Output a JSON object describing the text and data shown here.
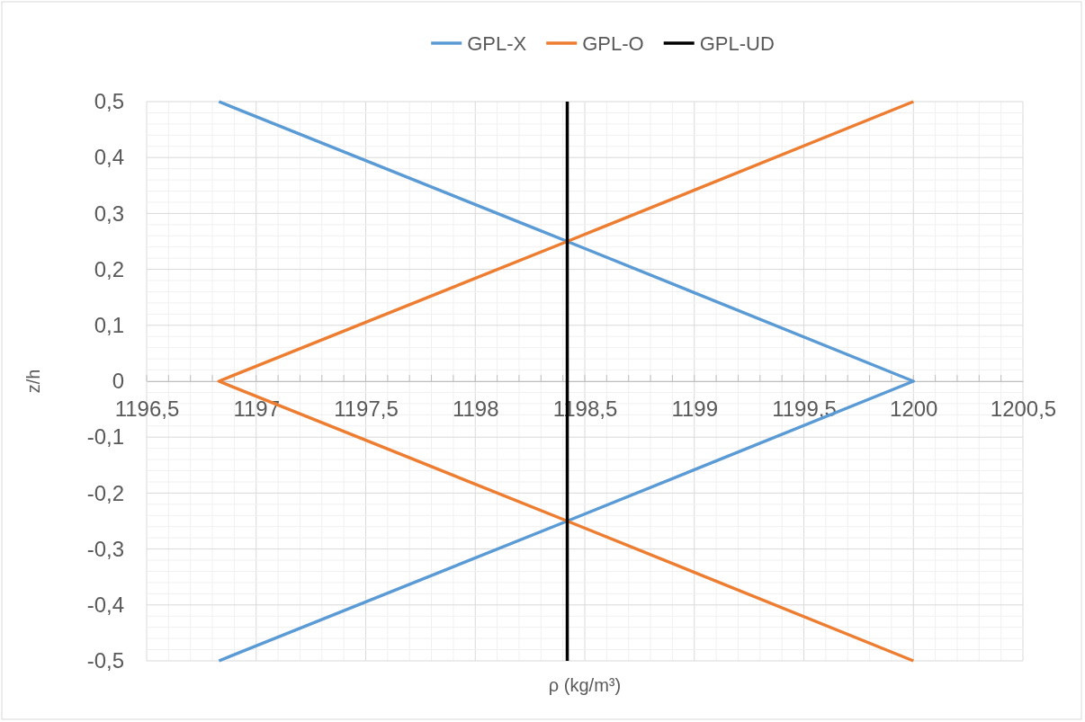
{
  "chart_data": {
    "type": "line",
    "xlabel": "ρ (kg/m³)",
    "ylabel": "z/h",
    "legend": "top",
    "grid": true,
    "line_style": "solid",
    "marker": "none",
    "xlim": [
      1196.5,
      1200.5
    ],
    "xticks": [
      {
        "value": 1196.5,
        "label": "1196,5"
      },
      1197,
      {
        "value": 1197.5,
        "label": "1197,5"
      },
      1198,
      {
        "value": 1198.5,
        "label": "1198,5"
      },
      1199,
      {
        "value": 1199.5,
        "label": "1199,5"
      },
      1200,
      {
        "value": 1200.5,
        "label": "1200,5"
      }
    ],
    "ylim": [
      -0.5,
      0.5
    ],
    "yticks": [
      {
        "value": -0.5,
        "label": "-0,5"
      },
      {
        "value": -0.4,
        "label": "-0,4"
      },
      {
        "value": -0.3,
        "label": "-0,3"
      },
      {
        "value": -0.2,
        "label": "-0,2"
      },
      {
        "value": -0.1,
        "label": "-0,1"
      },
      0,
      {
        "value": 0.1,
        "label": "0,1"
      },
      {
        "value": 0.2,
        "label": "0,2"
      },
      {
        "value": 0.3,
        "label": "0,3"
      },
      {
        "value": 0.4,
        "label": "0,4"
      },
      {
        "value": 0.5,
        "label": "0,5"
      }
    ],
    "series": [
      {
        "name": "GPL-X",
        "color": "#5b9bd5",
        "x": [
          1196.83,
          1198.42,
          1200,
          1198.42,
          1196.83
        ],
        "values": [
          0.5,
          0.25,
          0,
          -0.25,
          -0.5
        ]
      },
      {
        "name": "GPL-O",
        "color": "#ed7d31",
        "x": [
          1200,
          1198.42,
          1196.83,
          1198.42,
          1200
        ],
        "values": [
          0.5,
          0.25,
          0,
          -0.25,
          -0.5
        ]
      },
      {
        "name": "GPL-UD",
        "color": "#000000",
        "x": [
          1198.42,
          1198.42
        ],
        "values": [
          0.5,
          -0.5
        ]
      }
    ]
  }
}
